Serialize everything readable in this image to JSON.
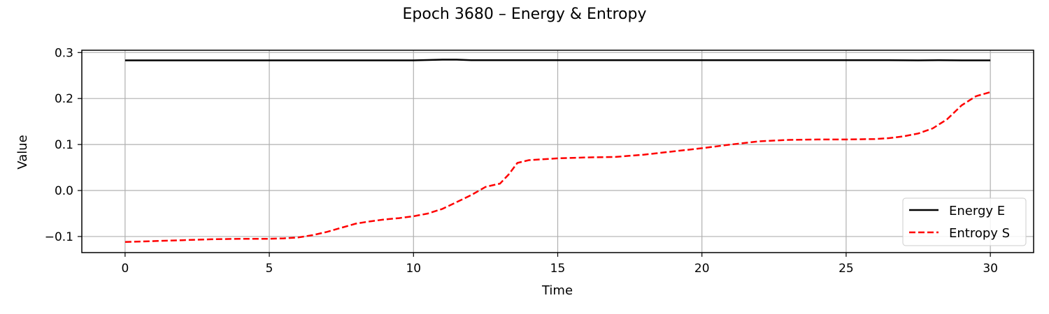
{
  "chart_data": {
    "type": "line",
    "title": "Epoch 3680 – Energy & Entropy",
    "xlabel": "Time",
    "ylabel": "Value",
    "xlim": [
      -1.5,
      31.5
    ],
    "ylim": [
      -0.135,
      0.305
    ],
    "xticks": [
      0,
      5,
      10,
      15,
      20,
      25,
      30
    ],
    "xtick_labels": [
      "0",
      "5",
      "10",
      "15",
      "20",
      "25",
      "30"
    ],
    "yticks": [
      -0.1,
      0.0,
      0.1,
      0.2,
      0.3
    ],
    "ytick_labels": [
      "−0.1",
      "0.0",
      "0.1",
      "0.2",
      "0.3"
    ],
    "grid": true,
    "legend_position": "lower-right",
    "series": [
      {
        "name": "Energy E",
        "color": "#000000",
        "style": "solid",
        "x": [
          0,
          2,
          4,
          6,
          8,
          10,
          11,
          11.5,
          12,
          14,
          16,
          18,
          20,
          22,
          24,
          26,
          27.5,
          28.2,
          29,
          30
        ],
        "y": [
          0.283,
          0.283,
          0.283,
          0.283,
          0.283,
          0.283,
          0.2845,
          0.2845,
          0.2835,
          0.2835,
          0.2835,
          0.2835,
          0.2835,
          0.2835,
          0.2835,
          0.2835,
          0.283,
          0.2835,
          0.283,
          0.283
        ]
      },
      {
        "name": "Entropy S",
        "color": "#ff0000",
        "style": "dashed",
        "x": [
          0,
          1,
          2,
          3,
          4,
          5,
          5.5,
          6,
          6.5,
          7,
          7.5,
          8,
          8.5,
          9,
          9.5,
          10,
          10.5,
          11,
          11.5,
          12,
          12.5,
          13,
          13.3,
          13.6,
          14,
          15,
          16,
          17,
          18,
          19,
          20,
          21,
          22,
          23,
          24,
          25,
          26,
          26.5,
          27,
          27.5,
          28,
          28.5,
          29,
          29.5,
          30
        ],
        "y": [
          -0.112,
          -0.11,
          -0.108,
          -0.106,
          -0.105,
          -0.105,
          -0.104,
          -0.102,
          -0.097,
          -0.09,
          -0.081,
          -0.072,
          -0.067,
          -0.063,
          -0.06,
          -0.056,
          -0.05,
          -0.04,
          -0.025,
          -0.01,
          0.008,
          0.015,
          0.035,
          0.06,
          0.066,
          0.07,
          0.072,
          0.073,
          0.078,
          0.085,
          0.092,
          0.1,
          0.107,
          0.11,
          0.111,
          0.111,
          0.112,
          0.114,
          0.118,
          0.124,
          0.135,
          0.155,
          0.185,
          0.205,
          0.214
        ]
      }
    ]
  }
}
